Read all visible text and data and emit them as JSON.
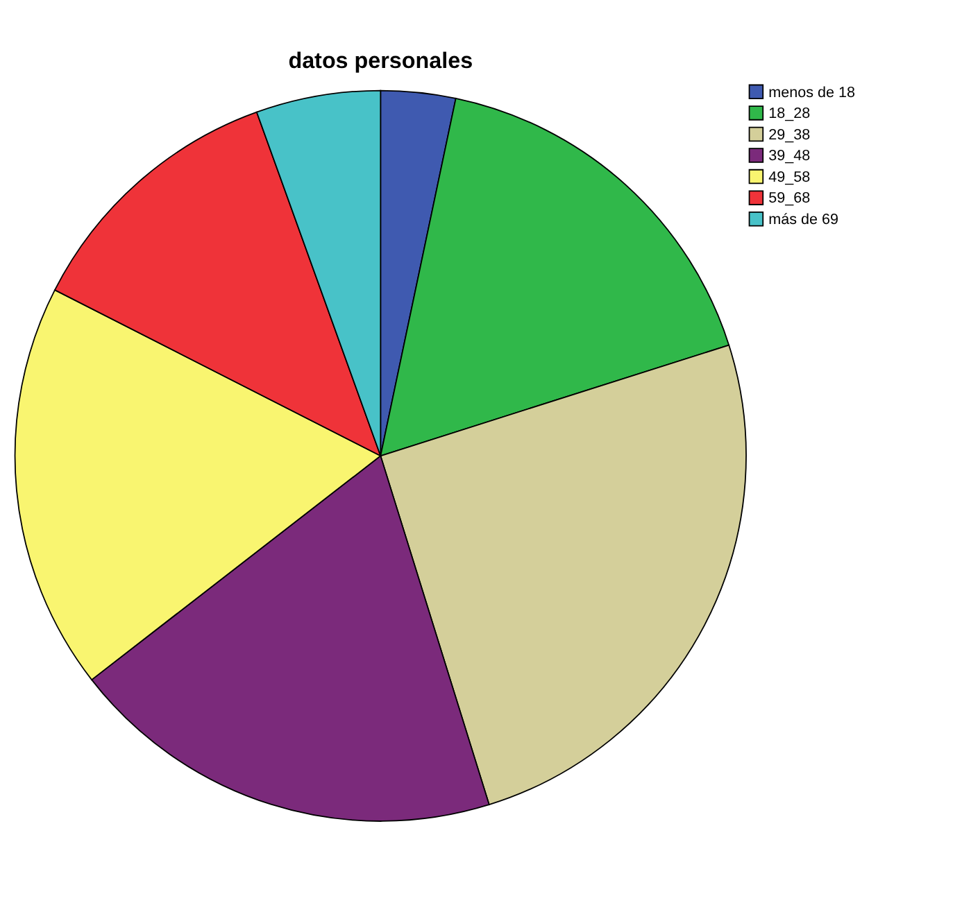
{
  "chart_data": {
    "type": "pie",
    "title": "datos personales",
    "categories": [
      "menos de 18",
      "18_28",
      "29_38",
      "39_48",
      "49_58",
      "59_68",
      "más de 69"
    ],
    "values": [
      3.3,
      16.8,
      25.1,
      19.3,
      18.0,
      12.0,
      5.5
    ],
    "colors": [
      "#3f5ab0",
      "#30b84a",
      "#d4cf9a",
      "#7b2a7b",
      "#f9f570",
      "#ef3339",
      "#48c2c8"
    ],
    "legend": "top right"
  }
}
